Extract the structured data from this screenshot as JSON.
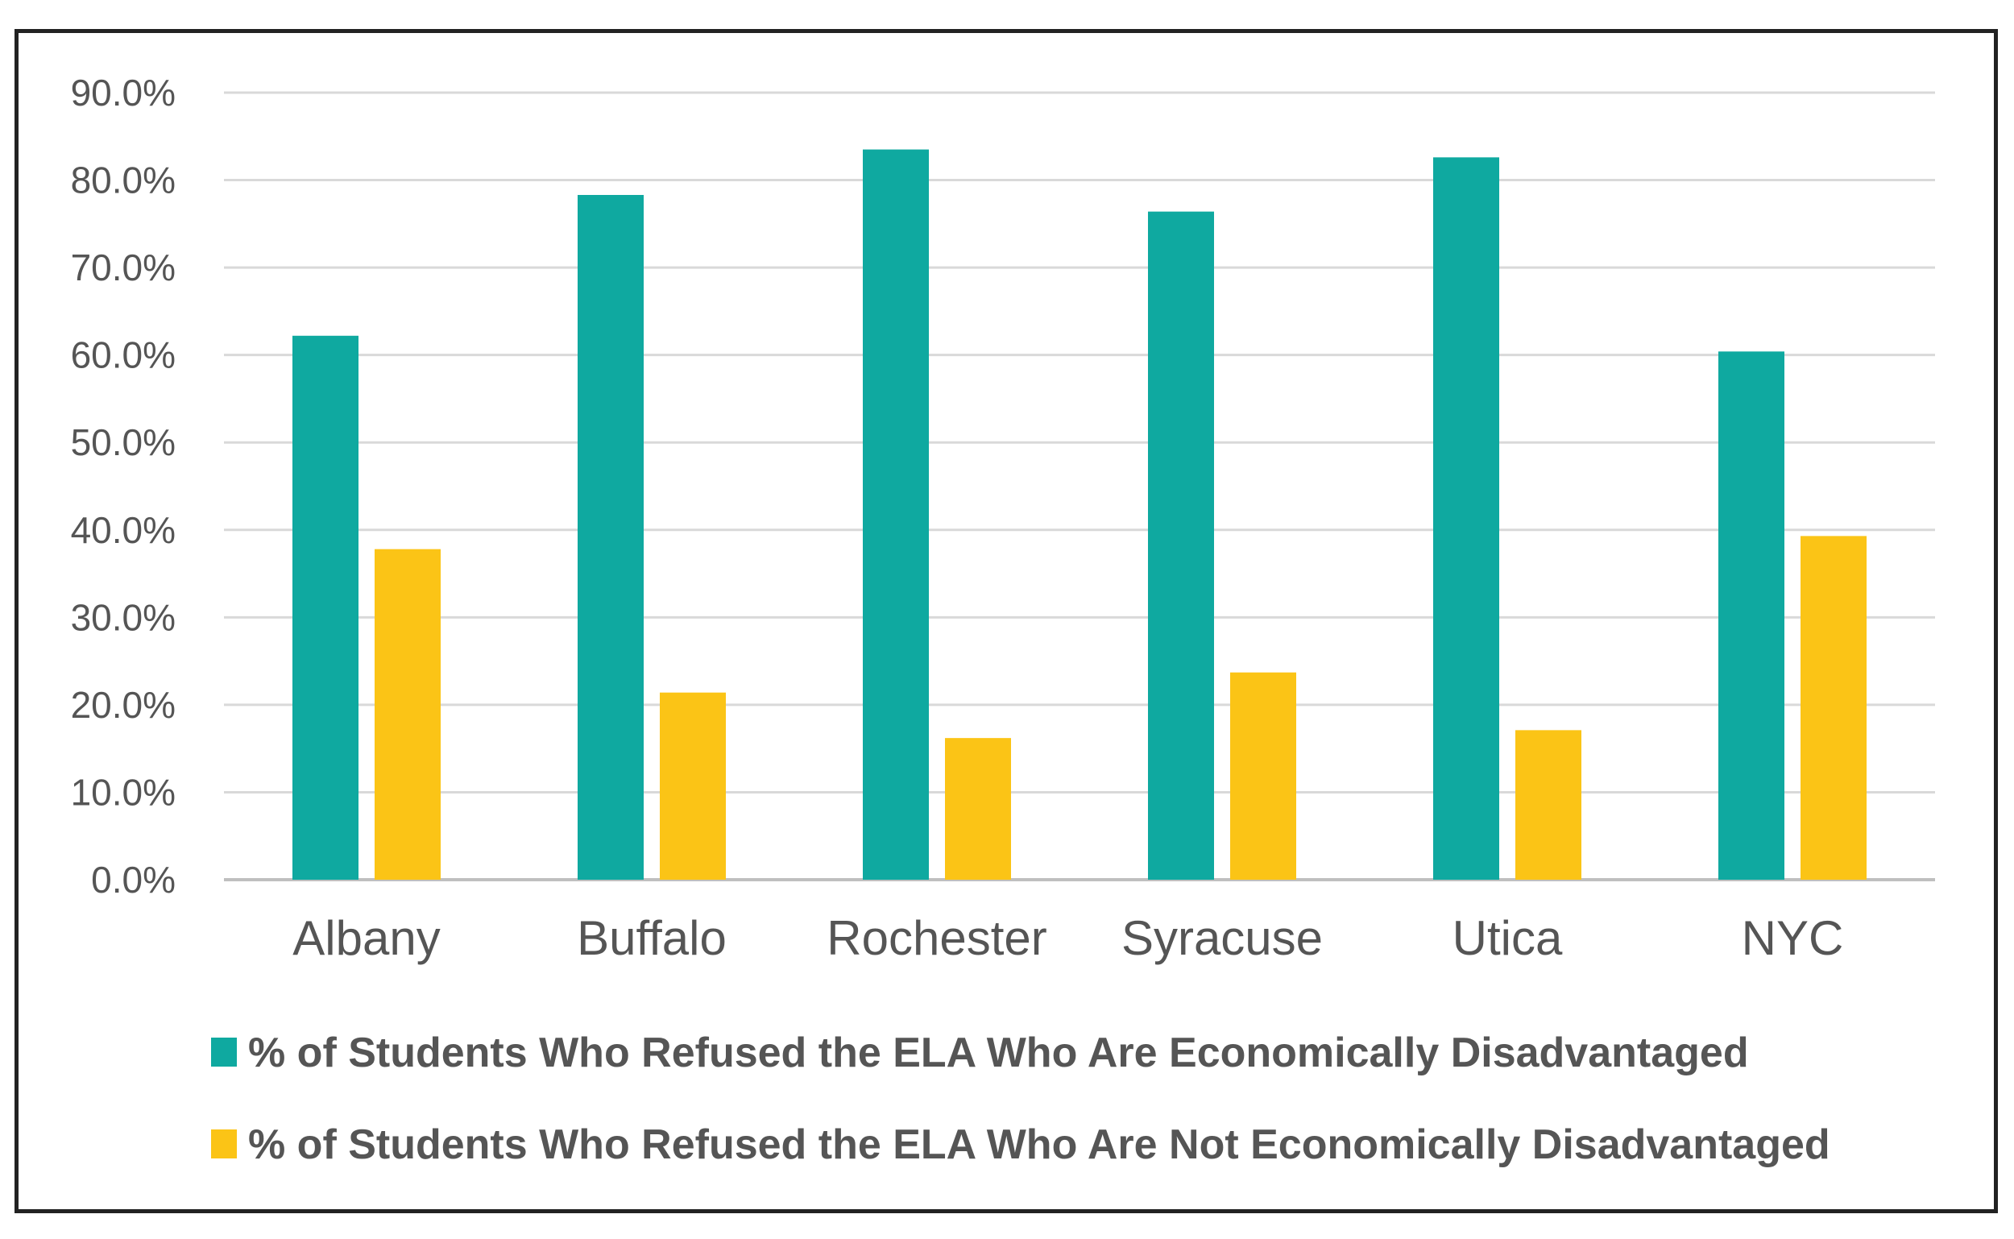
{
  "chart_data": {
    "type": "bar",
    "title": "",
    "xlabel": "",
    "ylabel": "",
    "categories": [
      "Albany",
      "Buffalo",
      "Rochester",
      "Syracuse",
      "Utica",
      "NYC"
    ],
    "y_ticks": [
      "0.0%",
      "10.0%",
      "20.0%",
      "30.0%",
      "40.0%",
      "50.0%",
      "60.0%",
      "70.0%",
      "80.0%",
      "90.0%"
    ],
    "ylim": [
      0,
      90
    ],
    "grid": true,
    "legend_position": "bottom",
    "series": [
      {
        "name": "% of Students Who Refused the ELA Who Are Economically Disadvantaged",
        "color": "#0FA9A0",
        "values": [
          62.2,
          78.3,
          83.5,
          76.4,
          82.6,
          60.4
        ]
      },
      {
        "name": "% of Students Who Refused the ELA Who Are Not Economically Disadvantaged",
        "color": "#FBC416",
        "values": [
          37.8,
          21.4,
          16.2,
          23.7,
          17.1,
          39.3
        ]
      }
    ]
  }
}
